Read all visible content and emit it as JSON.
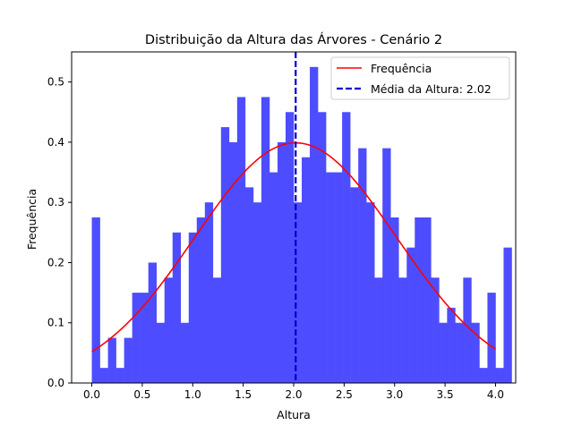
{
  "chart_data": {
    "type": "histogram",
    "title": "Distribuição da Altura das Árvores - Cenário 2",
    "xlabel": "Altura",
    "ylabel": "Frequência",
    "xlim": [
      -0.2,
      4.2
    ],
    "ylim": [
      0,
      0.55
    ],
    "xticks": [
      0.0,
      0.5,
      1.0,
      1.5,
      2.0,
      2.5,
      3.0,
      3.5,
      4.0
    ],
    "xtick_labels": [
      "0.0",
      "0.5",
      "1.0",
      "1.5",
      "2.0",
      "2.5",
      "3.0",
      "3.5",
      "4.0"
    ],
    "yticks": [
      0.0,
      0.1,
      0.2,
      0.3,
      0.4,
      0.5
    ],
    "ytick_labels": [
      "0.0",
      "0.1",
      "0.2",
      "0.3",
      "0.4",
      "0.5"
    ],
    "histogram": {
      "bin_start": 0.0,
      "bin_width": 0.08,
      "color": "#4d4dff",
      "values": [
        0.275,
        0.025,
        0.075,
        0.025,
        0.075,
        0.15,
        0.15,
        0.2,
        0.1,
        0.175,
        0.25,
        0.1,
        0.25,
        0.275,
        0.3,
        0.175,
        0.425,
        0.4,
        0.475,
        0.325,
        0.3,
        0.475,
        0.35,
        0.4,
        0.45,
        0.3,
        0.375,
        0.525,
        0.45,
        0.35,
        0.35,
        0.45,
        0.325,
        0.39,
        0.3,
        0.175,
        0.39,
        0.275,
        0.175,
        0.225,
        0.275,
        0.275,
        0.175,
        0.1,
        0.125,
        0.1,
        0.175,
        0.1,
        0.025,
        0.15,
        0.025,
        0.225
      ]
    },
    "series": [
      {
        "name": "Frequência",
        "type": "line",
        "color": "#ff0000",
        "curve": "normal_pdf",
        "mean": 2.02,
        "std": 1.0,
        "x_range": [
          0.0,
          4.0
        ]
      },
      {
        "name": "Média da Altura: 2.02",
        "type": "vline",
        "color": "#0000cc",
        "linestyle": "dashed",
        "x": 2.02
      }
    ],
    "legend": "top-right",
    "grid": false
  }
}
